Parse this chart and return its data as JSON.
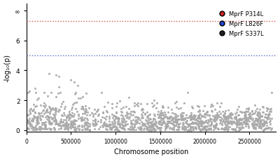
{
  "xlabel": "Chromosome position",
  "ylabel": "-log₁₀(p)",
  "xlim": [
    0,
    2800000
  ],
  "ylim": [
    -0.1,
    8.5
  ],
  "yticks": [
    0,
    2,
    4,
    6,
    8
  ],
  "ytick_labels": [
    "0",
    "2",
    "4",
    "6",
    "∞"
  ],
  "xticks": [
    0,
    500000,
    1000000,
    1500000,
    2000000,
    2500000
  ],
  "xtick_labels": [
    "0",
    "500000",
    "1000000",
    "1500000",
    "2000000",
    "2500000"
  ],
  "red_line_y": 7.3,
  "blue_line_y": 5.0,
  "red_line_color": "#d9534f",
  "blue_line_color": "#5b6dc8",
  "scatter_color": "#aaaaaa",
  "scatter_size": 5,
  "legend_entries": [
    {
      "label": "MprF P314L",
      "color": "#cc2222"
    },
    {
      "label": "MprF L826F",
      "color": "#2244cc"
    },
    {
      "label": "MprF S337L",
      "color": "#222222"
    }
  ],
  "background_color": "#ffffff",
  "seed": 42
}
